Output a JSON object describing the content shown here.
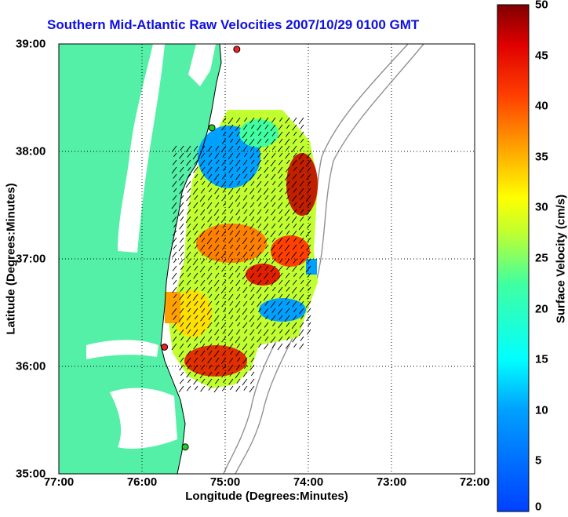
{
  "title": "Southern Mid-Atlantic Raw Velocities 2007/10/29 0100 GMT",
  "axes": {
    "xlabel": "Longitude (Degrees:Minutes)",
    "ylabel": "Latitude (Degrees:Minutes)",
    "x_ticks": [
      "77:00",
      "76:00",
      "75:00",
      "74:00",
      "73:00",
      "72:00"
    ],
    "y_ticks": [
      "39:00",
      "38:00",
      "37:00",
      "36:00",
      "35:00"
    ],
    "xlim": [
      -77,
      -72
    ],
    "ylim": [
      35,
      39
    ]
  },
  "colorbar": {
    "label": "Surface Velocity (cm/s)",
    "ticks": [
      "50",
      "45",
      "40",
      "35",
      "30",
      "25",
      "20",
      "15",
      "10",
      "5",
      "0"
    ],
    "range": [
      0,
      50
    ],
    "colormap": "jet"
  },
  "colors": {
    "land": "#55f0a8",
    "title": "#1010e0",
    "coast": "#000000",
    "bathymetry": "#909090",
    "station_green": "#22cc22",
    "station_red": "#ee2222"
  },
  "stations": [
    {
      "lon": -74.86,
      "lat": 38.95,
      "color": "red"
    },
    {
      "lon": -75.16,
      "lat": 38.22,
      "color": "green"
    },
    {
      "lon": -75.73,
      "lat": 36.18,
      "color": "red"
    },
    {
      "lon": -75.48,
      "lat": 35.25,
      "color": "green"
    }
  ]
}
